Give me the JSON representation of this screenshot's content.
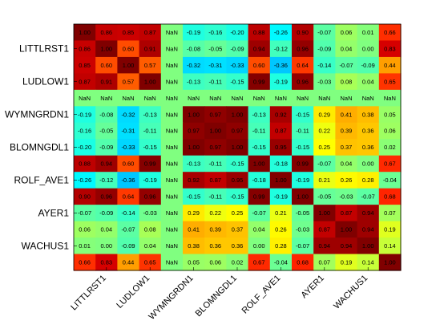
{
  "chart_data": {
    "type": "heatmap",
    "title": "",
    "xlabel": "",
    "ylabel": "",
    "colormap": "jet",
    "color_range": [
      -1,
      1
    ],
    "y_tick_labels": [
      "LITTLRST1",
      "LUDLOW1",
      "WYMNGRDN1",
      "BLOMNGDL1",
      "ROLF_AVE1",
      "AYER1",
      "WACHUS1"
    ],
    "x_tick_labels": [
      "LITTLRST1",
      "LUDLOW1",
      "WYMNGRDN1",
      "BLOMNGDL1",
      "ROLF_AVE1",
      "AYER1",
      "WACHUS1"
    ],
    "matrix": [
      [
        "1.00",
        "0.86",
        "0.85",
        "0.87",
        "NaN",
        "-0.19",
        "-0.16",
        "-0.20",
        "0.88",
        "-0.26",
        "0.90",
        "-0.07",
        "0.06",
        "0.01",
        "0.66"
      ],
      [
        "0.86",
        "1.00",
        "0.60",
        "0.91",
        "NaN",
        "-0.08",
        "-0.05",
        "-0.09",
        "0.94",
        "-0.12",
        "0.96",
        "-0.09",
        "0.04",
        "0.00",
        "0.83"
      ],
      [
        "0.85",
        "0.60",
        "1.00",
        "0.57",
        "NaN",
        "-0.32",
        "-0.31",
        "-0.33",
        "0.60",
        "-0.36",
        "0.64",
        "-0.14",
        "-0.07",
        "-0.09",
        "0.44"
      ],
      [
        "0.87",
        "0.91",
        "0.57",
        "1.00",
        "NaN",
        "-0.13",
        "-0.11",
        "-0.15",
        "0.99",
        "-0.19",
        "0.96",
        "-0.03",
        "0.08",
        "0.04",
        "0.65"
      ],
      [
        "NaN",
        "NaN",
        "NaN",
        "NaN",
        "NaN",
        "NaN",
        "NaN",
        "NaN",
        "NaN",
        "NaN",
        "NaN",
        "NaN",
        "NaN",
        "NaN",
        "NaN"
      ],
      [
        "-0.19",
        "-0.08",
        "-0.32",
        "-0.13",
        "NaN",
        "1.00",
        "0.97",
        "1.00",
        "-0.13",
        "0.92",
        "-0.15",
        "0.29",
        "0.41",
        "0.38",
        "0.05"
      ],
      [
        "-0.16",
        "-0.05",
        "-0.31",
        "-0.11",
        "NaN",
        "0.97",
        "1.00",
        "0.97",
        "-0.11",
        "0.87",
        "-0.11",
        "0.22",
        "0.39",
        "0.36",
        "0.06"
      ],
      [
        "-0.20",
        "-0.09",
        "-0.33",
        "-0.15",
        "NaN",
        "1.00",
        "0.97",
        "1.00",
        "-0.15",
        "0.95",
        "-0.15",
        "0.25",
        "0.37",
        "0.36",
        "0.02"
      ],
      [
        "0.88",
        "0.94",
        "0.60",
        "0.99",
        "NaN",
        "-0.13",
        "-0.11",
        "-0.15",
        "1.00",
        "-0.18",
        "0.99",
        "-0.07",
        "0.04",
        "0.00",
        "0.67"
      ],
      [
        "-0.26",
        "-0.12",
        "-0.36",
        "-0.19",
        "NaN",
        "0.92",
        "0.87",
        "0.95",
        "-0.18",
        "1.00",
        "-0.19",
        "0.21",
        "0.26",
        "0.28",
        "-0.04"
      ],
      [
        "0.90",
        "0.96",
        "0.64",
        "0.96",
        "NaN",
        "-0.15",
        "-0.11",
        "-0.15",
        "0.99",
        "-0.19",
        "1.00",
        "-0.05",
        "-0.03",
        "-0.07",
        "0.68"
      ],
      [
        "-0.07",
        "-0.09",
        "-0.14",
        "-0.03",
        "NaN",
        "0.29",
        "0.22",
        "0.25",
        "-0.07",
        "0.21",
        "-0.05",
        "1.00",
        "0.87",
        "0.94",
        "0.07"
      ],
      [
        "0.06",
        "0.04",
        "-0.07",
        "0.08",
        "NaN",
        "0.41",
        "0.39",
        "0.37",
        "0.04",
        "0.26",
        "-0.03",
        "0.87",
        "1.00",
        "0.94",
        "0.19"
      ],
      [
        "0.01",
        "0.00",
        "-0.09",
        "0.04",
        "NaN",
        "0.38",
        "0.36",
        "0.36",
        "0.00",
        "0.28",
        "-0.07",
        "0.94",
        "0.94",
        "1.00",
        "0.14"
      ],
      [
        "0.66",
        "0.83",
        "0.44",
        "0.65",
        "NaN",
        "0.05",
        "0.06",
        "0.02",
        "0.67",
        "-0.04",
        "0.68",
        "0.07",
        "0.19",
        "0.14",
        "1.00"
      ]
    ]
  }
}
